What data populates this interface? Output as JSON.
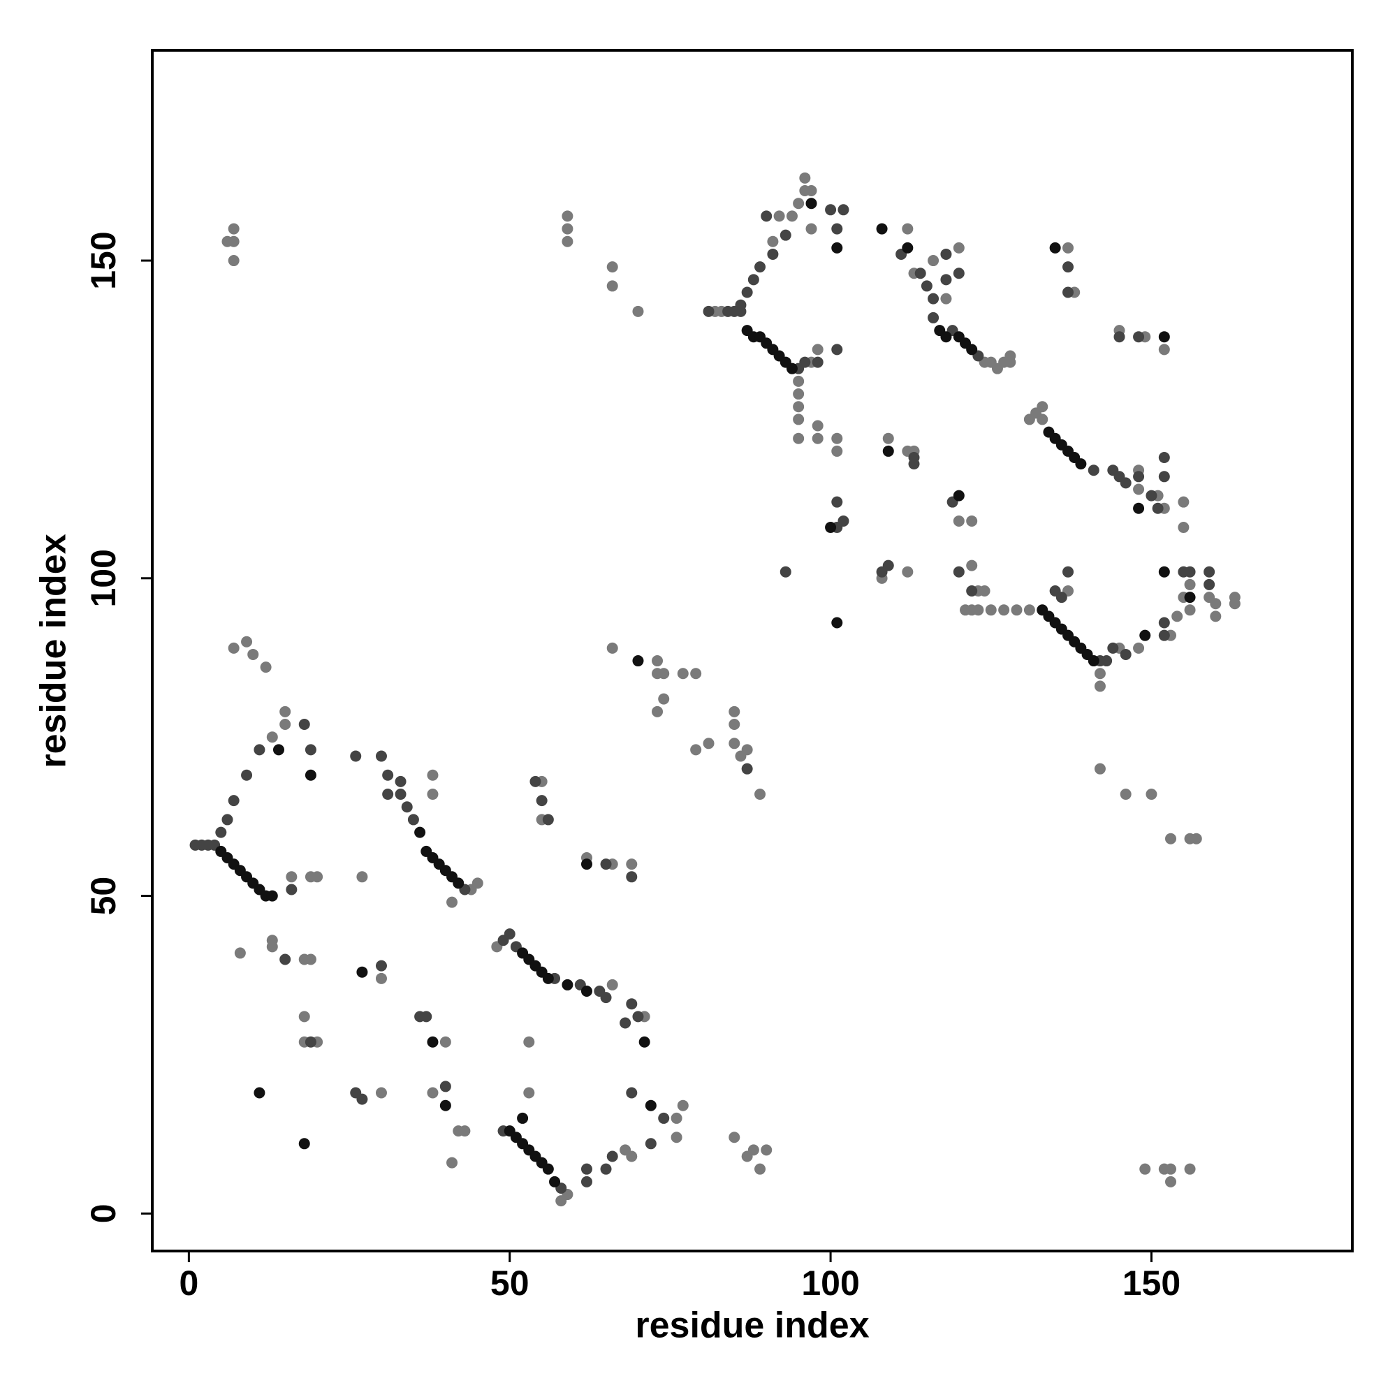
{
  "chart_data": {
    "type": "scatter",
    "x_label": "residue index",
    "y_label": "residue index",
    "xlim": [
      -5.7,
      181.3
    ],
    "ylim": [
      -5.9,
      183.1
    ],
    "xticks": [
      0,
      50,
      100,
      150
    ],
    "yticks": [
      0,
      50,
      100,
      150
    ],
    "series": [
      {
        "color": "#7a7a7a",
        "x": [
          7,
          6,
          7,
          7,
          7,
          9,
          10,
          12,
          15,
          15,
          13,
          38,
          38,
          44,
          45,
          41,
          48,
          66,
          71,
          58,
          59,
          68,
          69,
          76,
          77,
          53,
          76,
          82,
          83,
          95,
          95,
          95,
          95,
          95,
          97,
          98,
          98,
          101,
          101,
          98,
          91,
          94,
          95,
          96,
          97,
          97,
          92,
          96,
          124,
          125,
          126,
          127,
          128,
          128,
          113,
          112,
          116,
          118,
          120,
          131,
          132,
          133,
          133,
          148,
          148,
          151,
          152,
          155,
          155,
          137,
          138,
          145,
          149,
          152,
          125,
          127,
          129,
          131,
          142,
          142,
          145,
          148,
          153,
          156,
          156,
          159,
          160,
          160,
          163,
          163,
          155,
          154,
          137,
          122,
          123,
          124,
          121,
          122,
          123,
          108,
          112,
          109,
          112,
          113,
          120,
          122,
          30,
          18,
          19,
          8,
          13,
          13,
          18,
          18,
          20,
          27,
          19,
          20,
          16,
          40,
          41,
          42,
          43,
          38,
          53,
          30,
          55,
          55,
          62,
          66,
          69,
          66,
          73,
          73,
          74,
          77,
          79,
          74,
          73,
          79,
          81,
          85,
          85,
          85,
          86,
          87,
          89,
          85,
          87,
          88,
          89,
          90,
          59,
          59,
          59,
          66,
          66,
          70,
          153,
          152,
          149,
          153,
          156,
          142,
          146,
          150,
          153,
          156,
          157
        ],
        "values": [
          153,
          153,
          155,
          150,
          89,
          90,
          88,
          86,
          77,
          79,
          75,
          69,
          66,
          51,
          52,
          49,
          42,
          36,
          31,
          2,
          3,
          10,
          9,
          15,
          17,
          19,
          12,
          142,
          142,
          131,
          129,
          127,
          125,
          122,
          134,
          122,
          124,
          122,
          120,
          136,
          153,
          157,
          159,
          161,
          161,
          155,
          157,
          163,
          134,
          134,
          133,
          134,
          135,
          134,
          148,
          155,
          150,
          144,
          152,
          125,
          126,
          127,
          125,
          117,
          114,
          113,
          111,
          112,
          108,
          152,
          145,
          139,
          138,
          136,
          95,
          95,
          95,
          95,
          85,
          83,
          89,
          89,
          91,
          99,
          95,
          97,
          96,
          94,
          97,
          96,
          97,
          94,
          98,
          102,
          98,
          98,
          95,
          95,
          95,
          100,
          101,
          122,
          120,
          120,
          109,
          109,
          37,
          40,
          40,
          41,
          42,
          43,
          31,
          27,
          27,
          53,
          53,
          53,
          53,
          27,
          8,
          13,
          13,
          19,
          27,
          19,
          68,
          62,
          56,
          55,
          55,
          89,
          87,
          85,
          85,
          85,
          85,
          81,
          79,
          73,
          74,
          79,
          77,
          74,
          72,
          73,
          66,
          12,
          9,
          10,
          7,
          10,
          157,
          155,
          153,
          149,
          146,
          142,
          7,
          7,
          7,
          5,
          7,
          70,
          66,
          66,
          59,
          59,
          59
        ]
      },
      {
        "color": "#444444",
        "x": [
          1,
          2,
          3,
          4,
          5,
          6,
          7,
          9,
          11,
          18,
          19,
          31,
          31,
          33,
          34,
          35,
          33,
          43,
          49,
          50,
          51,
          57,
          61,
          64,
          65,
          69,
          70,
          68,
          49,
          58,
          62,
          62,
          65,
          66,
          69,
          72,
          74,
          81,
          84,
          85,
          86,
          86,
          87,
          88,
          89,
          91,
          93,
          95,
          96,
          98,
          101,
          100,
          101,
          102,
          90,
          119,
          123,
          116,
          116,
          115,
          114,
          118,
          118,
          120,
          111,
          141,
          144,
          145,
          146,
          148,
          150,
          151,
          152,
          152,
          137,
          137,
          145,
          148,
          142,
          143,
          144,
          146,
          152,
          152,
          155,
          156,
          159,
          159,
          135,
          136,
          137,
          122,
          120,
          101,
          101,
          102,
          93,
          108,
          109,
          113,
          113,
          119,
          26,
          30,
          36,
          37,
          40,
          30,
          15,
          16,
          54,
          55,
          56,
          65,
          69,
          26,
          27,
          19,
          87
        ],
        "values": [
          58,
          58,
          58,
          58,
          60,
          62,
          65,
          69,
          73,
          77,
          73,
          69,
          66,
          66,
          64,
          62,
          68,
          51,
          43,
          44,
          42,
          37,
          36,
          35,
          34,
          33,
          31,
          30,
          13,
          4,
          5,
          7,
          7,
          9,
          19,
          11,
          15,
          142,
          142,
          142,
          142,
          143,
          145,
          147,
          149,
          151,
          154,
          133,
          134,
          134,
          136,
          158,
          155,
          158,
          157,
          139,
          135,
          141,
          144,
          146,
          148,
          147,
          151,
          148,
          151,
          117,
          117,
          116,
          115,
          116,
          113,
          111,
          116,
          119,
          149,
          145,
          138,
          138,
          87,
          87,
          89,
          88,
          91,
          93,
          101,
          101,
          101,
          99,
          98,
          97,
          101,
          98,
          101,
          112,
          108,
          109,
          101,
          101,
          102,
          119,
          118,
          112,
          72,
          72,
          31,
          31,
          20,
          39,
          40,
          51,
          68,
          65,
          62,
          55,
          53,
          19,
          18,
          27,
          70
        ]
      },
      {
        "color": "#111111",
        "x": [
          5,
          6,
          7,
          8,
          9,
          10,
          11,
          12,
          13,
          36,
          37,
          38,
          39,
          40,
          41,
          42,
          52,
          53,
          54,
          55,
          56,
          59,
          62,
          50,
          51,
          52,
          53,
          54,
          55,
          56,
          57,
          87,
          88,
          89,
          90,
          91,
          92,
          93,
          94,
          117,
          118,
          120,
          121,
          122,
          134,
          135,
          136,
          137,
          138,
          139,
          133,
          134,
          135,
          136,
          137,
          138,
          139,
          140,
          141,
          14,
          19,
          27,
          38,
          40,
          11,
          18,
          62,
          70,
          112,
          108,
          109,
          120,
          100,
          101,
          135,
          152,
          148,
          152,
          156,
          149,
          52,
          71,
          72,
          97,
          101
        ],
        "values": [
          57,
          56,
          55,
          54,
          53,
          52,
          51,
          50,
          50,
          60,
          57,
          56,
          55,
          54,
          53,
          52,
          41,
          40,
          39,
          38,
          37,
          36,
          35,
          13,
          12,
          11,
          10,
          9,
          8,
          7,
          5,
          139,
          138,
          138,
          137,
          136,
          135,
          134,
          133,
          139,
          138,
          138,
          137,
          136,
          123,
          122,
          121,
          120,
          119,
          118,
          95,
          94,
          93,
          92,
          91,
          90,
          89,
          88,
          87,
          73,
          69,
          38,
          27,
          17,
          19,
          11,
          55,
          87,
          152,
          155,
          120,
          113,
          108,
          93,
          152,
          138,
          111,
          101,
          97,
          91,
          15,
          27,
          17,
          159,
          152
        ]
      }
    ]
  }
}
